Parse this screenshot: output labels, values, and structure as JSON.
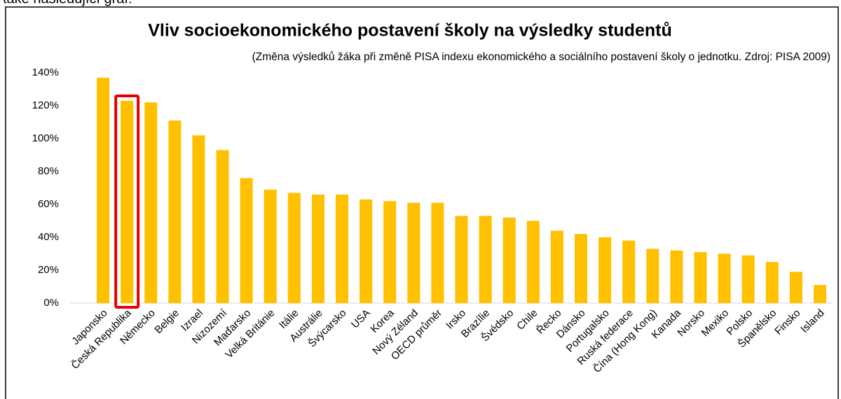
{
  "page_text": "také následující graf:",
  "chart_data": {
    "type": "bar",
    "title": "Vliv socioekonomického postavení školy na výsledky studentů",
    "subtitle": "(Změna výsledků žáka při změně PISA indexu ekonomického a sociálního postavení školy o jednotku. Zdroj: PISA 2009)",
    "categories": [
      "Japonsko",
      "Česká Republika",
      "Německo",
      "Belgie",
      "Izrael",
      "Nizozemí",
      "Maďarsko",
      "Velká Británie",
      "Itálie",
      "Austrálie",
      "Švýcarsko",
      "USA",
      "Korea",
      "Nový Zéland",
      "OECD průměr",
      "Irsko",
      "Brazílie",
      "Švédsko",
      "Chile",
      "Řecko",
      "Dánsko",
      "Portugalsko",
      "Ruská federace",
      "Čína (Hong Kong)",
      "Kanada",
      "Norsko",
      "Mexiko",
      "Polsko",
      "Španělsko",
      "Finsko",
      "Island"
    ],
    "values": [
      137,
      123,
      122,
      111,
      102,
      93,
      76,
      69,
      67,
      66,
      66,
      63,
      62,
      61,
      61,
      53,
      53,
      52,
      50,
      44,
      42,
      40,
      38,
      33,
      32,
      31,
      30,
      29,
      25,
      19,
      11
    ],
    "color": "#ffc000",
    "highlight": {
      "category": "Česká Republika",
      "color": "#e60000"
    },
    "ylim": [
      0,
      140
    ],
    "yticks": [
      {
        "value": 0,
        "label": "0%"
      },
      {
        "value": 20,
        "label": "20%"
      },
      {
        "value": 40,
        "label": "40%"
      },
      {
        "value": 60,
        "label": "60%"
      },
      {
        "value": 80,
        "label": "80%"
      },
      {
        "value": 100,
        "label": "100%"
      },
      {
        "value": 120,
        "label": "120%"
      },
      {
        "value": 140,
        "label": "140%"
      }
    ],
    "grid": false
  }
}
